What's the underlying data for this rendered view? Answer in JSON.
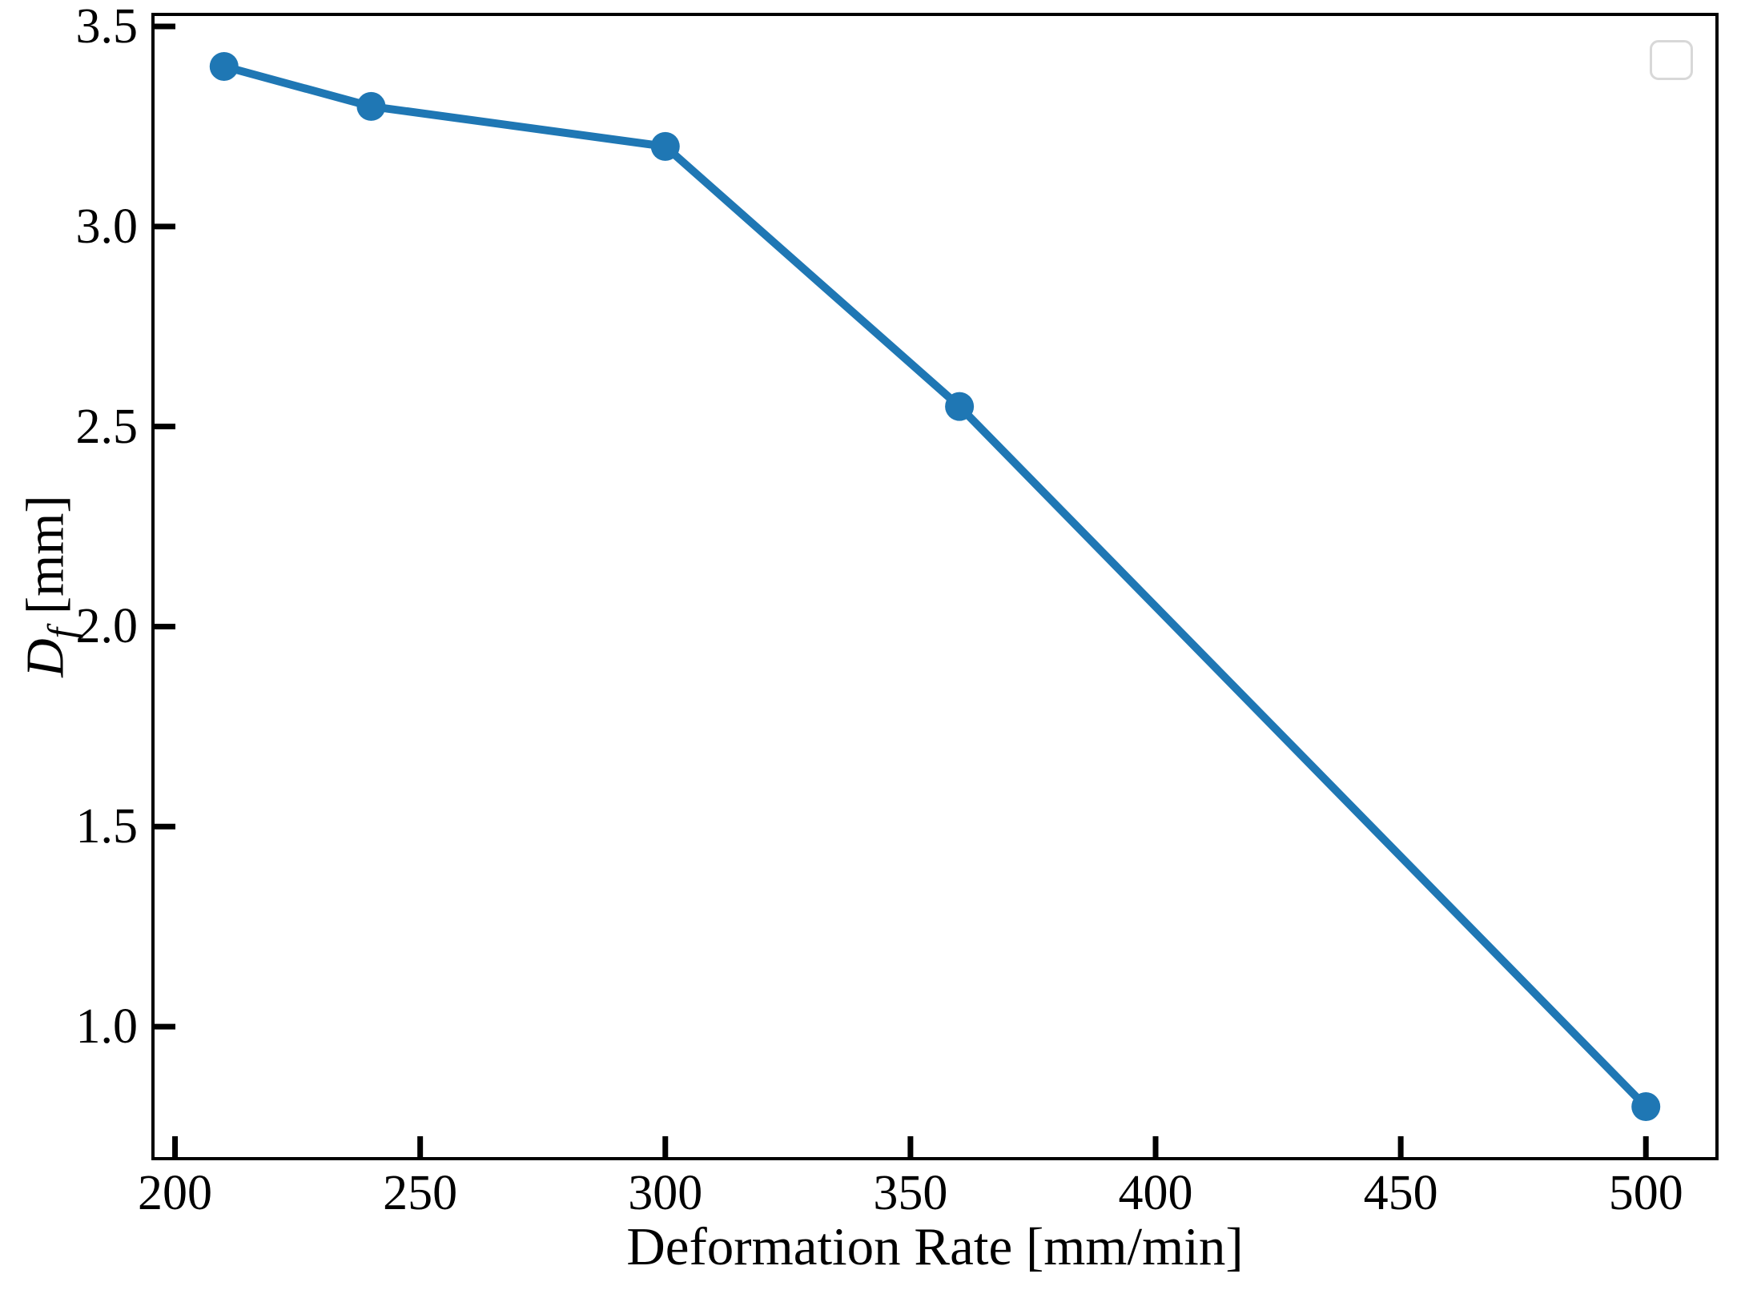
{
  "chart_data": {
    "type": "line",
    "title": "",
    "xlabel": "Deformation Rate [mm/min]",
    "ylabel": "Df [mm]",
    "ylabel_parts": {
      "var": "D",
      "sub": "f",
      "unit": " [mm]"
    },
    "series": [
      {
        "name": "",
        "x": [
          210,
          240,
          300,
          360,
          500
        ],
        "y": [
          3.4,
          3.3,
          3.2,
          2.55,
          0.8
        ],
        "color": "#1f77b4",
        "marker": "circle"
      }
    ],
    "xlim": [
      195.5,
      514.5
    ],
    "ylim": [
      0.67,
      3.53
    ],
    "xticks": [
      {
        "value": 200,
        "label": "200"
      },
      {
        "value": 250,
        "label": "250"
      },
      {
        "value": 300,
        "label": "300"
      },
      {
        "value": 350,
        "label": "350"
      },
      {
        "value": 400,
        "label": "400"
      },
      {
        "value": 450,
        "label": "450"
      },
      {
        "value": 500,
        "label": "500"
      }
    ],
    "yticks": [
      {
        "value": 1.0,
        "label": "1.0"
      },
      {
        "value": 1.5,
        "label": "1.5"
      },
      {
        "value": 2.0,
        "label": "2.0"
      },
      {
        "value": 2.5,
        "label": "2.5"
      },
      {
        "value": 3.0,
        "label": "3.0"
      },
      {
        "value": 3.5,
        "label": "3.5"
      }
    ],
    "grid": false,
    "legend": {
      "visible": true,
      "entries": [],
      "position": "upper right"
    }
  },
  "colors": {
    "line": "#1f77b4",
    "spine": "#000000",
    "tick": "#000000",
    "legend_border": "#d8d8d8",
    "background": "#ffffff"
  }
}
